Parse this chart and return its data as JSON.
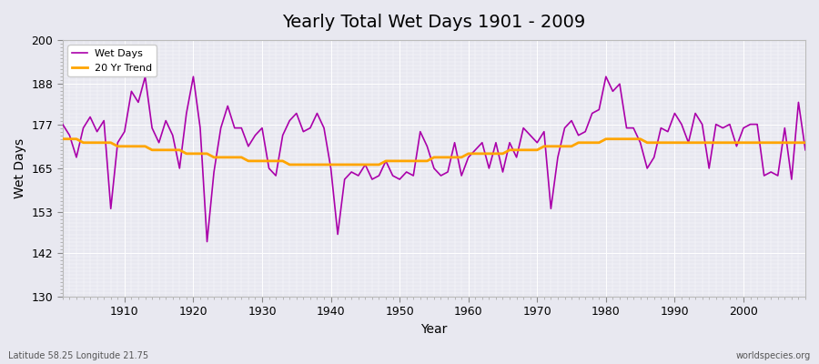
{
  "title": "Yearly Total Wet Days 1901 - 2009",
  "xlabel": "Year",
  "ylabel": "Wet Days",
  "lat_label": "Latitude 58.25 Longitude 21.75",
  "source_label": "worldspecies.org",
  "xlim": [
    1901,
    2009
  ],
  "ylim": [
    130,
    200
  ],
  "yticks": [
    130,
    142,
    153,
    165,
    177,
    188,
    200
  ],
  "xticks": [
    1910,
    1920,
    1930,
    1940,
    1950,
    1960,
    1970,
    1980,
    1990,
    2000
  ],
  "wet_days_color": "#AA00AA",
  "trend_color": "#FFA500",
  "bg_color": "#E8E8F0",
  "wet_days_linewidth": 1.2,
  "trend_linewidth": 2.0,
  "years": [
    1901,
    1902,
    1903,
    1904,
    1905,
    1906,
    1907,
    1908,
    1909,
    1910,
    1911,
    1912,
    1913,
    1914,
    1915,
    1916,
    1917,
    1918,
    1919,
    1920,
    1921,
    1922,
    1923,
    1924,
    1925,
    1926,
    1927,
    1928,
    1929,
    1930,
    1931,
    1932,
    1933,
    1934,
    1935,
    1936,
    1937,
    1938,
    1939,
    1940,
    1941,
    1942,
    1943,
    1944,
    1945,
    1946,
    1947,
    1948,
    1949,
    1950,
    1951,
    1952,
    1953,
    1954,
    1955,
    1956,
    1957,
    1958,
    1959,
    1960,
    1961,
    1962,
    1963,
    1964,
    1965,
    1966,
    1967,
    1968,
    1969,
    1970,
    1971,
    1972,
    1973,
    1974,
    1975,
    1976,
    1977,
    1978,
    1979,
    1980,
    1981,
    1982,
    1983,
    1984,
    1985,
    1986,
    1987,
    1988,
    1989,
    1990,
    1991,
    1992,
    1993,
    1994,
    1995,
    1996,
    1997,
    1998,
    1999,
    2000,
    2001,
    2002,
    2003,
    2004,
    2005,
    2006,
    2007,
    2008,
    2009
  ],
  "wet_days": [
    177,
    174,
    168,
    176,
    179,
    175,
    178,
    154,
    172,
    175,
    186,
    183,
    190,
    176,
    172,
    178,
    174,
    165,
    180,
    190,
    176,
    145,
    164,
    176,
    182,
    176,
    176,
    171,
    174,
    176,
    165,
    163,
    174,
    178,
    180,
    175,
    176,
    180,
    176,
    165,
    147,
    162,
    164,
    163,
    166,
    162,
    163,
    167,
    163,
    162,
    164,
    163,
    175,
    171,
    165,
    163,
    164,
    172,
    163,
    168,
    170,
    172,
    165,
    172,
    164,
    172,
    168,
    176,
    174,
    172,
    175,
    154,
    168,
    176,
    178,
    174,
    175,
    180,
    181,
    190,
    186,
    188,
    176,
    176,
    172,
    165,
    168,
    176,
    175,
    180,
    177,
    172,
    180,
    177,
    165,
    177,
    176,
    177,
    171,
    176,
    177,
    177,
    163,
    164,
    163,
    176,
    162,
    183,
    170
  ],
  "trend": [
    173,
    173,
    173,
    172,
    172,
    172,
    172,
    172,
    171,
    171,
    171,
    171,
    171,
    170,
    170,
    170,
    170,
    170,
    169,
    169,
    169,
    169,
    168,
    168,
    168,
    168,
    168,
    167,
    167,
    167,
    167,
    167,
    167,
    166,
    166,
    166,
    166,
    166,
    166,
    166,
    166,
    166,
    166,
    166,
    166,
    166,
    166,
    167,
    167,
    167,
    167,
    167,
    167,
    167,
    168,
    168,
    168,
    168,
    168,
    169,
    169,
    169,
    169,
    169,
    169,
    170,
    170,
    170,
    170,
    170,
    171,
    171,
    171,
    171,
    171,
    172,
    172,
    172,
    172,
    173,
    173,
    173,
    173,
    173,
    173,
    172,
    172,
    172,
    172,
    172,
    172,
    172,
    172,
    172,
    172,
    172,
    172,
    172,
    172,
    172,
    172,
    172,
    172,
    172,
    172,
    172,
    172,
    172,
    172
  ]
}
